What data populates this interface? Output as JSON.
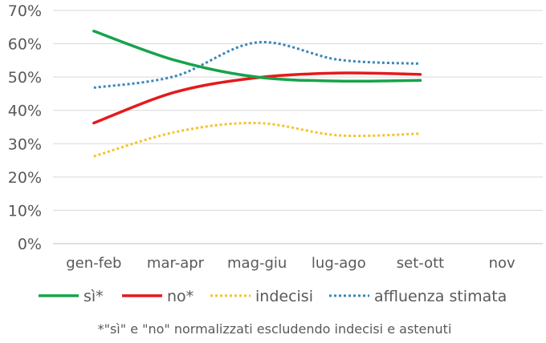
{
  "chart_data": {
    "type": "line",
    "categories": [
      "gen-feb",
      "mar-apr",
      "mag-giu",
      "lug-ago",
      "set-ott",
      "nov"
    ],
    "y_ticks": [
      "0%",
      "10%",
      "20%",
      "30%",
      "40%",
      "50%",
      "60%",
      "70%"
    ],
    "ylim": [
      0,
      70
    ],
    "grid": true,
    "legend_position": "bottom",
    "series": [
      {
        "name": "sì*",
        "values": [
          63.8,
          55.0,
          50.0,
          48.8,
          49.0,
          null
        ],
        "color": "#16a34a",
        "style": "solid"
      },
      {
        "name": "no*",
        "values": [
          36.2,
          45.5,
          49.8,
          51.2,
          50.8,
          null
        ],
        "color": "#e41a1c",
        "style": "solid"
      },
      {
        "name": "indecisi",
        "values": [
          26.2,
          33.5,
          36.2,
          32.5,
          33.0,
          null
        ],
        "color": "#f5c22b",
        "style": "dotted"
      },
      {
        "name": "affluenza stimata",
        "values": [
          46.8,
          50.3,
          60.4,
          55.2,
          54.0,
          null
        ],
        "color": "#3a86b8",
        "style": "dotted"
      }
    ],
    "footnote": "*\"sì\" e \"no\" normalizzati escludendo indecisi e astenuti"
  }
}
